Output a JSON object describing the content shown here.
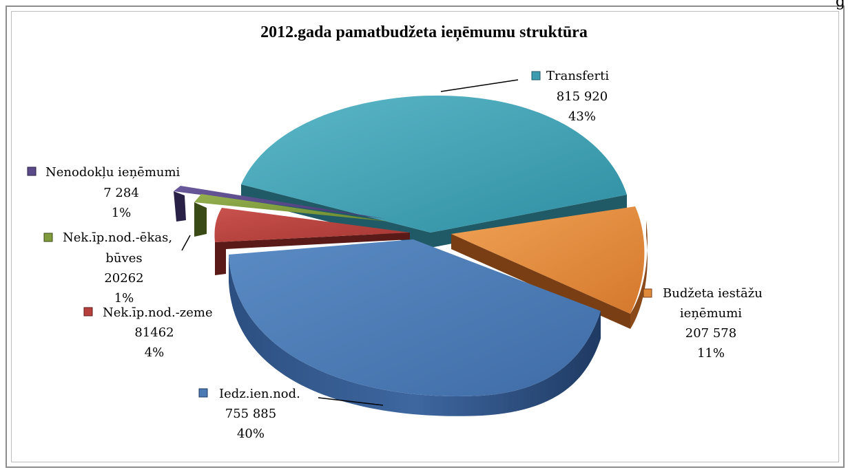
{
  "corner_text": "g",
  "chart_data": {
    "type": "pie",
    "title": "2012.gada pamatbudžeta ieņēmumu struktūra",
    "slices": [
      {
        "name": "Transferti",
        "value_label": "815 920",
        "percent_label": "43%",
        "value": 815920,
        "color": "#3d9db0"
      },
      {
        "name": "Budžeta iestāžu ieņēmumi",
        "value_label": "207 578",
        "percent_label": "11%",
        "value": 207578,
        "color": "#e08a3b"
      },
      {
        "name": "Iedz.ien.nod.",
        "value_label": "755 885",
        "percent_label": "40%",
        "value": 755885,
        "color": "#4a79b3"
      },
      {
        "name": "Nek.īp.nod.-zeme",
        "value_label": "81462",
        "percent_label": "4%",
        "value": 81462,
        "color": "#b8403c"
      },
      {
        "name": "Nek.īp.nod.-ēkas, būves",
        "value_label": "20262",
        "percent_label": "1%",
        "value": 20262,
        "color": "#7f9b3c"
      },
      {
        "name": "Nenodokļu ieņēmumi",
        "value_label": "7 284",
        "percent_label": "1%",
        "value": 7284,
        "color": "#5b4a8a"
      }
    ]
  }
}
